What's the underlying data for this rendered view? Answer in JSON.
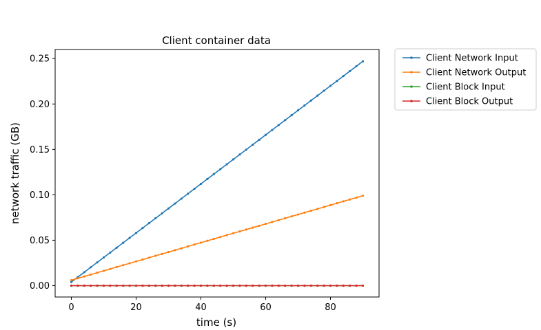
{
  "chart_data": {
    "type": "line",
    "title": "Client container data",
    "xlabel": "time (s)",
    "ylabel": "network traffic (GB)",
    "xlim": [
      -5,
      95
    ],
    "ylim": [
      -0.0125,
      0.26
    ],
    "xticks": [
      0,
      20,
      40,
      60,
      80
    ],
    "xtick_labels": [
      "0",
      "20",
      "40",
      "60",
      "80"
    ],
    "yticks": [
      0,
      0.05,
      0.1,
      0.15,
      0.2,
      0.25
    ],
    "ytick_labels": [
      "0.00",
      "0.05",
      "0.10",
      "0.15",
      "0.20",
      "0.25"
    ],
    "grid": false,
    "legend_position": "outside-top-right",
    "x": [
      0,
      2,
      4,
      6,
      8,
      10,
      12,
      14,
      16,
      18,
      20,
      22,
      24,
      26,
      28,
      30,
      32,
      34,
      36,
      38,
      40,
      42,
      44,
      46,
      48,
      50,
      52,
      54,
      56,
      58,
      60,
      62,
      64,
      66,
      68,
      70,
      72,
      74,
      76,
      78,
      80,
      82,
      84,
      86,
      88,
      90
    ],
    "series": [
      {
        "name": "Client Network Input",
        "color": "#1f77b4",
        "values": [
          0.004,
          0.0094,
          0.0148,
          0.0202,
          0.0256,
          0.031,
          0.0364,
          0.0418,
          0.0472,
          0.0526,
          0.058,
          0.0634,
          0.0688,
          0.0742,
          0.0796,
          0.085,
          0.0904,
          0.0958,
          0.1012,
          0.1066,
          0.112,
          0.1174,
          0.1228,
          0.1282,
          0.1336,
          0.139,
          0.1444,
          0.1498,
          0.1552,
          0.1606,
          0.166,
          0.1714,
          0.1768,
          0.1822,
          0.1876,
          0.193,
          0.1984,
          0.2038,
          0.2092,
          0.2146,
          0.22,
          0.2254,
          0.2308,
          0.2362,
          0.2416,
          0.247
        ]
      },
      {
        "name": "Client Network Output",
        "color": "#ff7f0e",
        "values": [
          0.006,
          0.0081,
          0.0101,
          0.0122,
          0.0143,
          0.0163,
          0.0184,
          0.0205,
          0.0225,
          0.0246,
          0.0267,
          0.0287,
          0.0308,
          0.0329,
          0.0349,
          0.037,
          0.0391,
          0.0411,
          0.0432,
          0.0453,
          0.0473,
          0.0494,
          0.0515,
          0.0535,
          0.0556,
          0.0577,
          0.0597,
          0.0618,
          0.0639,
          0.0659,
          0.068,
          0.0701,
          0.0721,
          0.0742,
          0.0763,
          0.0783,
          0.0804,
          0.0825,
          0.0845,
          0.0866,
          0.0887,
          0.0907,
          0.0928,
          0.0949,
          0.0969,
          0.099
        ]
      },
      {
        "name": "Client Block Input",
        "color": "#2ca02c",
        "values": [
          0,
          0,
          0,
          0,
          0,
          0,
          0,
          0,
          0,
          0,
          0,
          0,
          0,
          0,
          0,
          0,
          0,
          0,
          0,
          0,
          0,
          0,
          0,
          0,
          0,
          0,
          0,
          0,
          0,
          0,
          0,
          0,
          0,
          0,
          0,
          0,
          0,
          0,
          0,
          0,
          0,
          0,
          0,
          0,
          0,
          0
        ]
      },
      {
        "name": "Client Block Output",
        "color": "#d62728",
        "values": [
          0,
          0,
          0,
          0,
          0,
          0,
          0,
          0,
          0,
          0,
          0,
          0,
          0,
          0,
          0,
          0,
          0,
          0,
          0,
          0,
          0,
          0,
          0,
          0,
          0,
          0,
          0,
          0,
          0,
          0,
          0,
          0,
          0,
          0,
          0,
          0,
          0,
          0,
          0,
          0,
          0,
          0,
          0,
          0,
          0,
          0
        ]
      }
    ]
  }
}
